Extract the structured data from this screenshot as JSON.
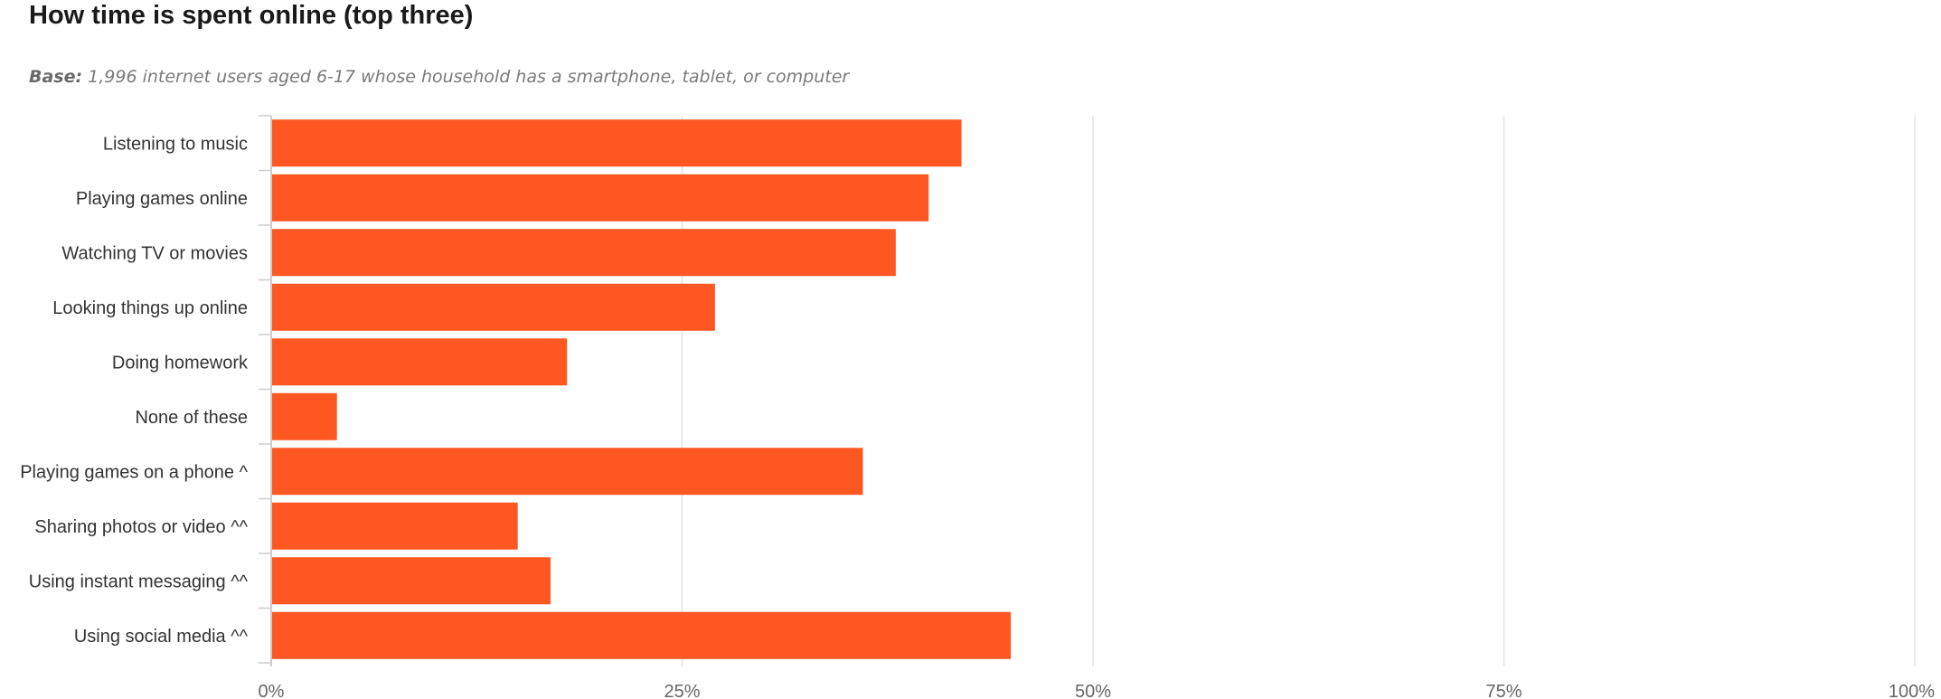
{
  "chart_data": {
    "type": "bar",
    "orientation": "horizontal",
    "title": "How time is spent online (top three)",
    "base_label": "Base:",
    "base_text": "1,996 internet users aged 6-17 whose household has a smartphone, tablet, or computer",
    "categories": [
      "Listening to music",
      "Playing games online",
      "Watching TV or movies",
      "Looking things up online",
      "Doing homework",
      "None of these",
      "Playing games on a phone ^",
      "Sharing photos or video ^^",
      "Using instant messaging ^^",
      "Using social media ^^"
    ],
    "values": [
      42,
      40,
      38,
      27,
      18,
      4,
      36,
      15,
      17,
      45
    ],
    "xlim": [
      0,
      100
    ],
    "ticks": [
      0,
      25,
      50,
      75,
      100
    ],
    "tick_labels": [
      "0%",
      "25%",
      "50%",
      "75%",
      "100%"
    ],
    "xlabel": "",
    "ylabel": "",
    "grid": true,
    "bar_color": "#FF5722",
    "grid_color": "#e4e4e4",
    "axis_color": "#cccccc"
  }
}
